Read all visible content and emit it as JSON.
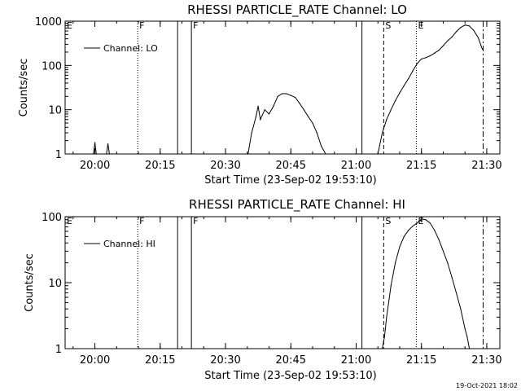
{
  "footer": "19-Oct-2021 18:02",
  "chart_data": [
    {
      "type": "line",
      "title": "RHESSI PARTICLE_RATE Channel: LO",
      "xlabel": "Start Time (23-Sep-02 19:53:10)",
      "ylabel": "Counts/sec",
      "xlim": [
        "19:53:10",
        "21:33:00"
      ],
      "ylim": [
        1,
        1000
      ],
      "yscale": "log",
      "grid": false,
      "legend_position": "top-left",
      "xticks": [
        "20:00",
        "20:15",
        "20:30",
        "20:45",
        "21:00",
        "21:15",
        "21:30"
      ],
      "yticks": [
        "1",
        "10",
        "100",
        "1000"
      ],
      "series": [
        {
          "name": "Channel: LO",
          "x": [
            "19:59:40",
            "20:00:00",
            "20:00:20",
            "20:02:40",
            "20:03:00",
            "20:03:20",
            "20:35:10",
            "20:36:00",
            "20:37:00",
            "20:37:30",
            "20:38:00",
            "20:39:00",
            "20:40:00",
            "20:41:00",
            "20:42:00",
            "20:43:00",
            "20:44:00",
            "20:45:00",
            "20:46:00",
            "20:47:00",
            "20:48:00",
            "20:49:00",
            "20:50:00",
            "20:51:00",
            "20:52:00",
            "20:53:00",
            "21:05:00",
            "21:06:00",
            "21:07:00",
            "21:08:00",
            "21:09:00",
            "21:10:00",
            "21:11:00",
            "21:12:00",
            "21:13:00",
            "21:14:00",
            "21:15:00",
            "21:16:00",
            "21:17:00",
            "21:18:00",
            "21:19:00",
            "21:20:00",
            "21:21:00",
            "21:22:00",
            "21:23:00",
            "21:24:00",
            "21:25:00",
            "21:26:00",
            "21:27:00",
            "21:28:00",
            "21:29:00"
          ],
          "values": [
            1,
            1.8,
            1,
            1,
            1.7,
            1,
            1,
            3,
            7,
            12,
            6,
            10,
            8,
            12,
            20,
            23,
            23,
            21,
            19,
            14,
            10,
            7,
            5,
            3,
            1.5,
            1,
            1,
            3,
            6,
            10,
            16,
            24,
            35,
            50,
            75,
            110,
            140,
            150,
            165,
            190,
            220,
            280,
            360,
            440,
            580,
            720,
            820,
            780,
            620,
            430,
            230
          ]
        }
      ],
      "markers": [
        {
          "label": "E",
          "time": "19:53:10",
          "style": "solid"
        },
        {
          "label": "F",
          "time": "20:09:50",
          "style": "dotted"
        },
        {
          "label": "",
          "time": "20:19:00",
          "style": "solid"
        },
        {
          "label": "F",
          "time": "20:22:10",
          "style": "solid"
        },
        {
          "label": "",
          "time": "21:01:20",
          "style": "solid"
        },
        {
          "label": "S",
          "time": "21:06:20",
          "style": "dashed"
        },
        {
          "label": "E",
          "time": "21:13:50",
          "style": "dotted"
        },
        {
          "label": "",
          "time": "21:29:10",
          "style": "dashdot"
        }
      ]
    },
    {
      "type": "line",
      "title": "RHESSI PARTICLE_RATE Channel: HI",
      "xlabel": "Start Time (23-Sep-02 19:53:10)",
      "ylabel": "Counts/sec",
      "xlim": [
        "19:53:10",
        "21:33:00"
      ],
      "ylim": [
        1,
        100
      ],
      "yscale": "log",
      "grid": false,
      "legend_position": "top-left",
      "xticks": [
        "20:00",
        "20:15",
        "20:30",
        "20:45",
        "21:00",
        "21:15",
        "21:30"
      ],
      "yticks": [
        "1",
        "10",
        "100"
      ],
      "series": [
        {
          "name": "Channel: HI",
          "x": [
            "21:06:00",
            "21:06:30",
            "21:07:00",
            "21:08:00",
            "21:09:00",
            "21:10:00",
            "21:11:00",
            "21:12:00",
            "21:13:00",
            "21:14:00",
            "21:15:00",
            "21:16:00",
            "21:17:00",
            "21:18:00",
            "21:19:00",
            "21:20:00",
            "21:21:00",
            "21:22:00",
            "21:23:00",
            "21:24:00",
            "21:25:00",
            "21:25:30",
            "21:26:00"
          ],
          "values": [
            1,
            1.5,
            3,
            9,
            20,
            35,
            50,
            62,
            72,
            80,
            92,
            90,
            80,
            62,
            45,
            30,
            20,
            12,
            7,
            4,
            2,
            1.5,
            1
          ]
        }
      ],
      "markers": [
        {
          "label": "E",
          "time": "19:53:10",
          "style": "solid"
        },
        {
          "label": "F",
          "time": "20:09:50",
          "style": "dotted"
        },
        {
          "label": "",
          "time": "20:19:00",
          "style": "solid"
        },
        {
          "label": "F",
          "time": "20:22:10",
          "style": "solid"
        },
        {
          "label": "",
          "time": "21:01:20",
          "style": "solid"
        },
        {
          "label": "S",
          "time": "21:06:20",
          "style": "dashed"
        },
        {
          "label": "E",
          "time": "21:13:50",
          "style": "dotted"
        },
        {
          "label": "",
          "time": "21:29:10",
          "style": "dashdot"
        }
      ]
    }
  ]
}
